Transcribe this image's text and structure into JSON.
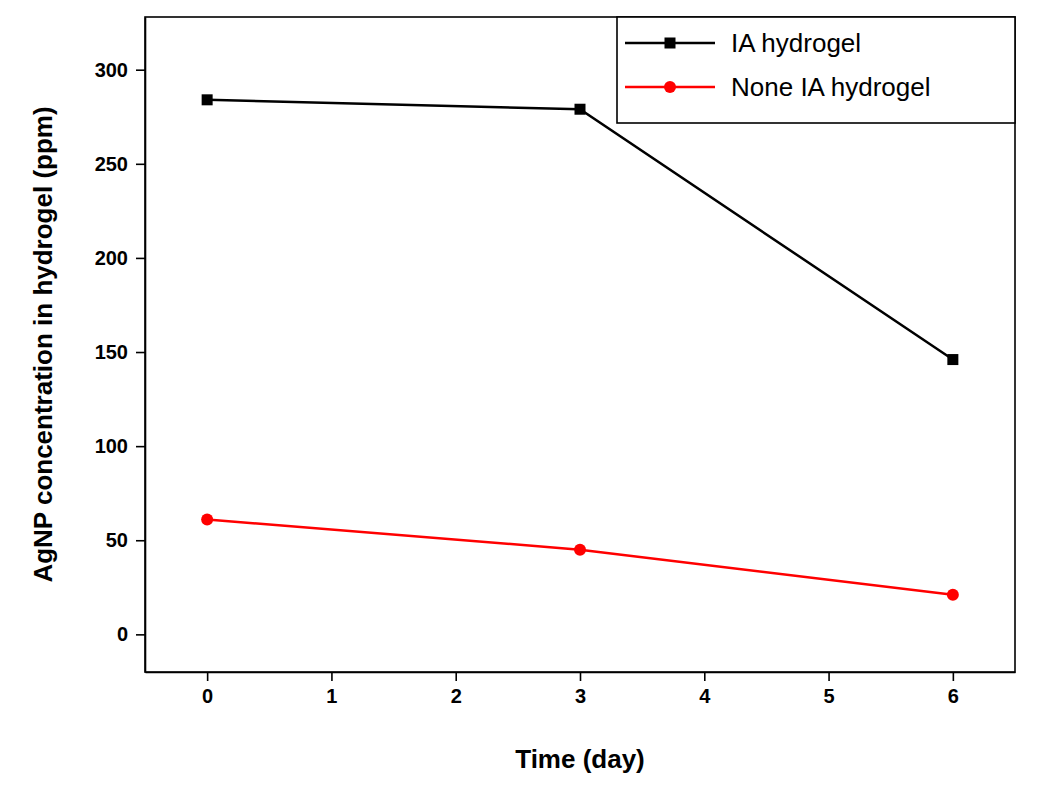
{
  "chart_data": {
    "type": "line",
    "x_label": "Time (day)",
    "y_label": "AgNP concentration in hydrogel (ppm)",
    "x": [
      0,
      3,
      6
    ],
    "series": [
      {
        "name": "IA hydrogel",
        "color": "#000000",
        "marker": "square",
        "values": [
          284,
          279,
          146
        ]
      },
      {
        "name": "None IA hydrogel",
        "color": "#ff0000",
        "marker": "circle",
        "values": [
          61,
          45,
          21
        ]
      }
    ],
    "xlim": [
      -0.5,
      6.5
    ],
    "xticks": [
      0,
      1,
      2,
      3,
      4,
      5,
      6
    ],
    "ylim": [
      -20,
      328
    ],
    "yticks": [
      0,
      50,
      100,
      150,
      200,
      250,
      300
    ],
    "grid": false,
    "legend": "upper right"
  }
}
